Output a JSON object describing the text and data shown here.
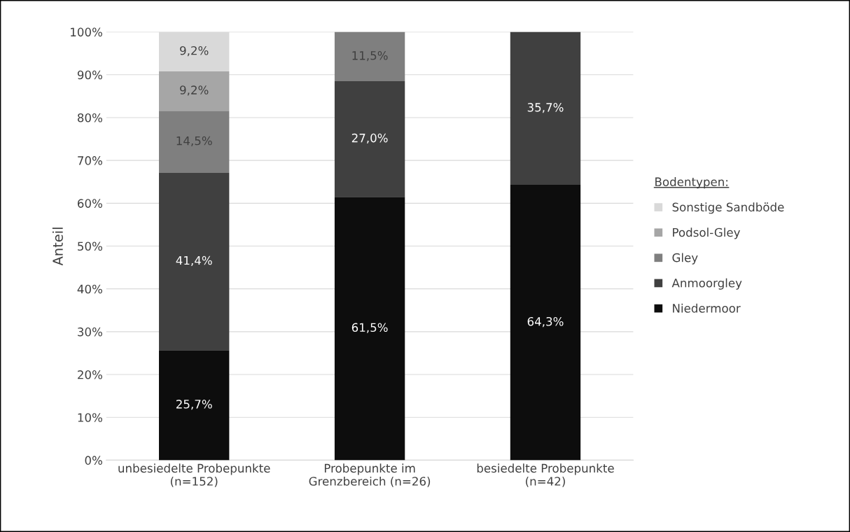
{
  "chart_data": {
    "type": "bar",
    "stacked": true,
    "ylabel": "Anteil",
    "legend_title": "Bodentypen:",
    "legend": "right",
    "grid": "y",
    "categories": [
      "unbesiedelte Probepunkte\n(n=152)",
      "Probepunkte im\nGrenzbereich (n=26)",
      "besiedelte Probepunkte\n(n=42)"
    ],
    "ylim": [
      0,
      100
    ],
    "yticks": [
      {
        "value": 0,
        "label": "0%"
      },
      {
        "value": 10,
        "label": "10%"
      },
      {
        "value": 20,
        "label": "20%"
      },
      {
        "value": 30,
        "label": "30%"
      },
      {
        "value": 40,
        "label": "40%"
      },
      {
        "value": 50,
        "label": "50%"
      },
      {
        "value": 60,
        "label": "60%"
      },
      {
        "value": 70,
        "label": "70%"
      },
      {
        "value": 80,
        "label": "80%"
      },
      {
        "value": 90,
        "label": "90%"
      },
      {
        "value": 100,
        "label": "100%"
      }
    ],
    "series": [
      {
        "name": "Niedermoor",
        "color": "#0d0d0d",
        "values": [
          25.7,
          61.5,
          64.3
        ],
        "value_labels": [
          "25,7%",
          "61,5%",
          "64,3%"
        ]
      },
      {
        "name": "Anmoorgley",
        "color": "#404040",
        "values": [
          41.4,
          27.0,
          35.7
        ],
        "value_labels": [
          "41,4%",
          "27,0%",
          "35,7%"
        ]
      },
      {
        "name": "Gley",
        "color": "#7f7f7f",
        "values": [
          14.5,
          11.5,
          null
        ],
        "value_labels": [
          "14,5%",
          "11,5%",
          null
        ]
      },
      {
        "name": "Podsol-Gley",
        "color": "#a6a6a6",
        "values": [
          9.2,
          null,
          null
        ],
        "value_labels": [
          "9,2%",
          null,
          null
        ]
      },
      {
        "name": "Sonstige Sandböde",
        "color": "#d9d9d9",
        "values": [
          9.2,
          null,
          null
        ],
        "value_labels": [
          "9,2%",
          null,
          null
        ]
      }
    ]
  }
}
